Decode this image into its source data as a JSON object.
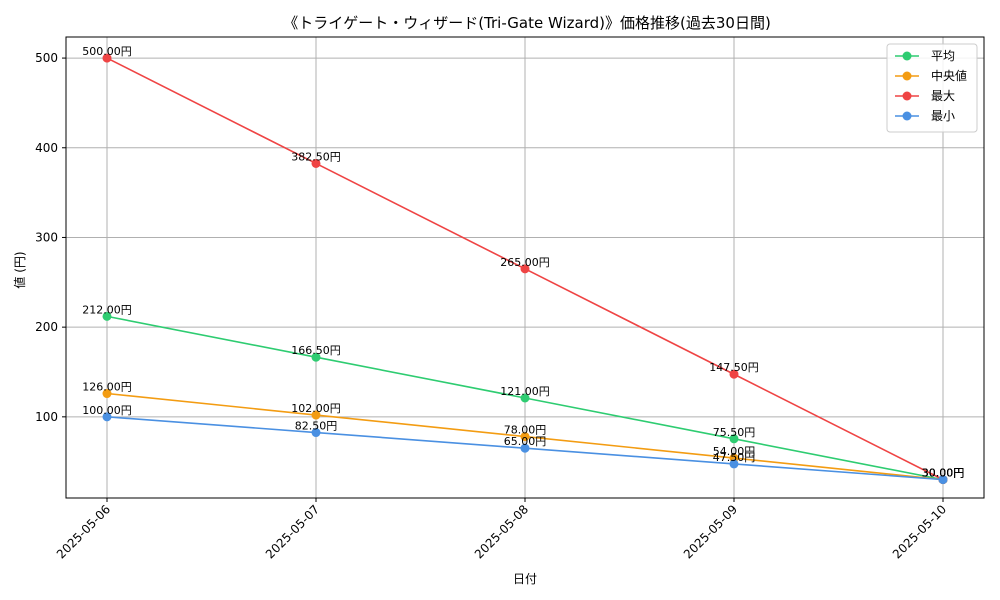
{
  "chart_data": {
    "type": "line",
    "title": "《トライゲート・ウィザード(Tri-Gate Wizard)》価格推移(過去30日間)",
    "xlabel": "日付",
    "ylabel": "値 (円)",
    "categories": [
      "2025-05-06",
      "2025-05-07",
      "2025-05-08",
      "2025-05-09",
      "2025-05-10"
    ],
    "ylim": [
      9.5,
      523.5
    ],
    "yticks": [
      100,
      200,
      300,
      400,
      500
    ],
    "grid": true,
    "legend_position": "top-right",
    "series": [
      {
        "name": "平均",
        "color": "#2ecc71",
        "values": [
          212.0,
          166.5,
          121.0,
          75.5,
          30.0
        ],
        "labels": [
          "212.00円",
          "166.50円",
          "121.00円",
          "75.50円",
          "30.00円"
        ]
      },
      {
        "name": "中央値",
        "color": "#f39c12",
        "values": [
          126.0,
          102.0,
          78.0,
          54.0,
          30.0
        ],
        "labels": [
          "126.00円",
          "102.00円",
          "78.00円",
          "54.00円",
          "30.00円"
        ]
      },
      {
        "name": "最大",
        "color": "#ef4444",
        "values": [
          500.0,
          382.5,
          265.0,
          147.5,
          30.0
        ],
        "labels": [
          "500.00円",
          "382.50円",
          "265.00円",
          "147.50円",
          "30.00円"
        ]
      },
      {
        "name": "最小",
        "color": "#4a90e2",
        "values": [
          100.0,
          82.5,
          65.0,
          47.5,
          30.0
        ],
        "labels": [
          "100.00円",
          "82.50円",
          "65.00円",
          "47.50円",
          "30.00円"
        ]
      }
    ]
  }
}
